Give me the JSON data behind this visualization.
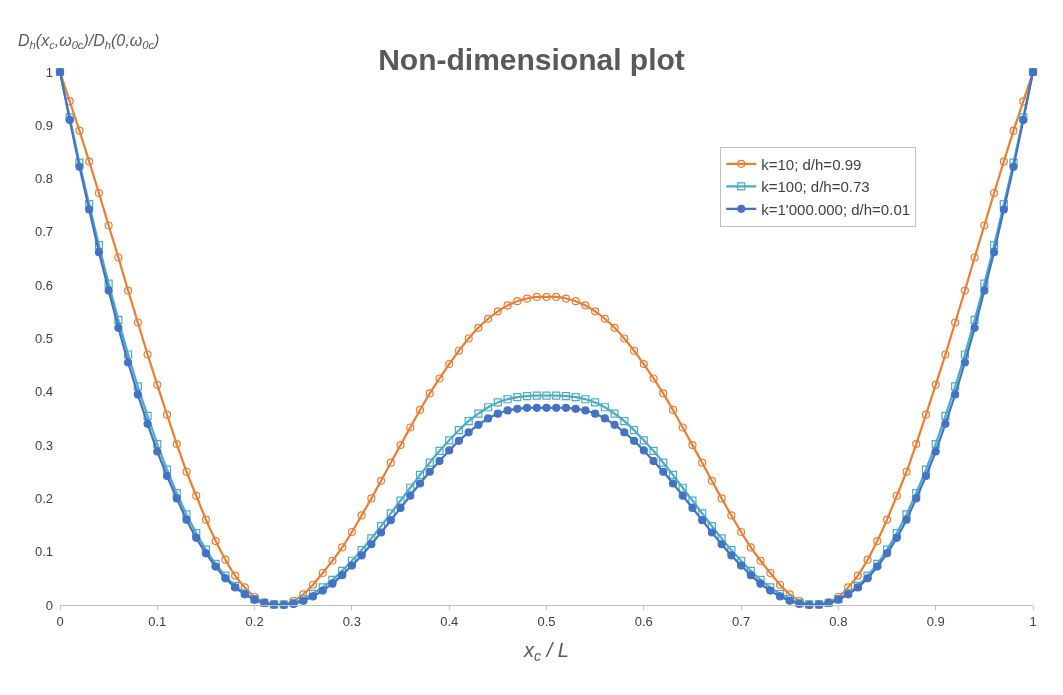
{
  "chart_data": {
    "type": "line",
    "title": "Non-dimensional plot",
    "xlabel": "x$_{c}$ / L",
    "ylabel": "D$_{h}$(x$_{c}$,ω$_{0c}$)/D$_{h}$(0,ω$_{0c}$)",
    "x": [
      0,
      0.01,
      0.02,
      0.03,
      0.04,
      0.05,
      0.06,
      0.07,
      0.08,
      0.09,
      0.1,
      0.11,
      0.12,
      0.13,
      0.14,
      0.15,
      0.16,
      0.17,
      0.18,
      0.19,
      0.2,
      0.21,
      0.22,
      0.23,
      0.24,
      0.25,
      0.26,
      0.27,
      0.28,
      0.29,
      0.3,
      0.31,
      0.32,
      0.33,
      0.34,
      0.35,
      0.36,
      0.37,
      0.38,
      0.39,
      0.4,
      0.41,
      0.42,
      0.43,
      0.44,
      0.45,
      0.46,
      0.47,
      0.48,
      0.49,
      0.5,
      0.51,
      0.52,
      0.53,
      0.54,
      0.55,
      0.56,
      0.57,
      0.58,
      0.59,
      0.6,
      0.61,
      0.62,
      0.63,
      0.64,
      0.65,
      0.66,
      0.67,
      0.68,
      0.69,
      0.7,
      0.71,
      0.72,
      0.73,
      0.74,
      0.75,
      0.76,
      0.77,
      0.78,
      0.79,
      0.8,
      0.81,
      0.82,
      0.83,
      0.84,
      0.85,
      0.86,
      0.87,
      0.88,
      0.89,
      0.9,
      0.91,
      0.92,
      0.93,
      0.94,
      0.95,
      0.96,
      0.97,
      0.98,
      0.99,
      1
    ],
    "series": [
      {
        "name": "k=10; d/h=0.99",
        "color": "#ed7d31",
        "marker": "circle-open",
        "values": [
          1,
          0.945,
          0.89,
          0.832,
          0.773,
          0.712,
          0.652,
          0.59,
          0.53,
          0.47,
          0.413,
          0.357,
          0.302,
          0.25,
          0.205,
          0.16,
          0.12,
          0.085,
          0.055,
          0.033,
          0.015,
          0.005,
          0,
          0.001,
          0.008,
          0.02,
          0.038,
          0.06,
          0.083,
          0.108,
          0.137,
          0.168,
          0.2,
          0.233,
          0.267,
          0.3,
          0.333,
          0.366,
          0.397,
          0.425,
          0.452,
          0.477,
          0.5,
          0.52,
          0.537,
          0.551,
          0.562,
          0.57,
          0.575,
          0.578,
          0.578,
          0.578,
          0.575,
          0.57,
          0.562,
          0.551,
          0.537,
          0.52,
          0.5,
          0.477,
          0.452,
          0.425,
          0.397,
          0.366,
          0.333,
          0.3,
          0.267,
          0.233,
          0.2,
          0.168,
          0.137,
          0.108,
          0.083,
          0.06,
          0.038,
          0.02,
          0.008,
          0.001,
          0,
          0.005,
          0.015,
          0.033,
          0.055,
          0.085,
          0.12,
          0.16,
          0.205,
          0.25,
          0.302,
          0.357,
          0.413,
          0.47,
          0.53,
          0.59,
          0.652,
          0.712,
          0.773,
          0.832,
          0.89,
          0.945,
          1
        ]
      },
      {
        "name": "k=100; d/h=0.73",
        "color": "#4bacc6",
        "marker": "square-open",
        "values": [
          1,
          0.915,
          0.83,
          0.752,
          0.675,
          0.603,
          0.535,
          0.47,
          0.41,
          0.355,
          0.302,
          0.254,
          0.21,
          0.17,
          0.135,
          0.104,
          0.077,
          0.055,
          0.036,
          0.022,
          0.011,
          0.004,
          0.001,
          0.001,
          0.004,
          0.011,
          0.021,
          0.033,
          0.047,
          0.064,
          0.083,
          0.103,
          0.125,
          0.148,
          0.172,
          0.196,
          0.22,
          0.244,
          0.267,
          0.289,
          0.309,
          0.328,
          0.345,
          0.359,
          0.371,
          0.38,
          0.386,
          0.39,
          0.392,
          0.393,
          0.393,
          0.393,
          0.392,
          0.39,
          0.386,
          0.38,
          0.371,
          0.359,
          0.345,
          0.328,
          0.309,
          0.289,
          0.267,
          0.244,
          0.22,
          0.196,
          0.172,
          0.148,
          0.125,
          0.103,
          0.083,
          0.064,
          0.047,
          0.033,
          0.021,
          0.011,
          0.004,
          0.001,
          0.001,
          0.004,
          0.011,
          0.022,
          0.036,
          0.055,
          0.077,
          0.104,
          0.135,
          0.17,
          0.21,
          0.254,
          0.302,
          0.355,
          0.41,
          0.47,
          0.535,
          0.603,
          0.675,
          0.752,
          0.83,
          0.915,
          1
        ]
      },
      {
        "name": "k=1'000.000; d/h=0.01",
        "color": "#4472c4",
        "marker": "circle",
        "values": [
          1,
          0.91,
          0.822,
          0.742,
          0.662,
          0.59,
          0.52,
          0.455,
          0.395,
          0.34,
          0.288,
          0.242,
          0.2,
          0.16,
          0.126,
          0.097,
          0.072,
          0.05,
          0.033,
          0.02,
          0.01,
          0.004,
          0.001,
          0,
          0.002,
          0.008,
          0.016,
          0.027,
          0.04,
          0.056,
          0.074,
          0.093,
          0.114,
          0.136,
          0.159,
          0.182,
          0.205,
          0.228,
          0.25,
          0.27,
          0.29,
          0.308,
          0.324,
          0.338,
          0.35,
          0.359,
          0.365,
          0.368,
          0.37,
          0.37,
          0.37,
          0.37,
          0.37,
          0.368,
          0.365,
          0.359,
          0.35,
          0.338,
          0.324,
          0.308,
          0.29,
          0.27,
          0.25,
          0.228,
          0.205,
          0.182,
          0.159,
          0.136,
          0.114,
          0.093,
          0.074,
          0.056,
          0.04,
          0.027,
          0.016,
          0.008,
          0.002,
          0,
          0.001,
          0.004,
          0.01,
          0.02,
          0.033,
          0.05,
          0.072,
          0.097,
          0.126,
          0.16,
          0.2,
          0.242,
          0.288,
          0.34,
          0.395,
          0.455,
          0.52,
          0.59,
          0.662,
          0.742,
          0.822,
          0.91,
          1
        ]
      }
    ],
    "xlim": [
      0,
      1
    ],
    "ylim": [
      0,
      1
    ],
    "xticks": [
      0,
      0.1,
      0.2,
      0.3,
      0.4,
      0.5,
      0.6,
      0.7,
      0.8,
      0.9,
      1
    ],
    "yticks": [
      0,
      0.1,
      0.2,
      0.3,
      0.4,
      0.5,
      0.6,
      0.7,
      0.8,
      0.9,
      1
    ],
    "legend": "top right",
    "line_style": "solid"
  }
}
